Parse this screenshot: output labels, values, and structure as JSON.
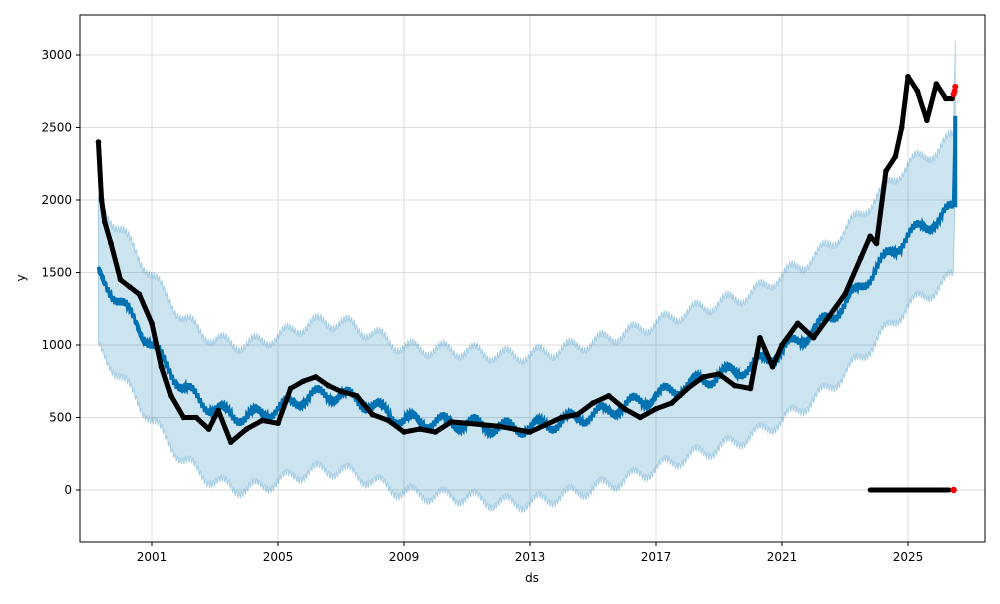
{
  "chart_data": {
    "type": "line",
    "title": "",
    "xlabel": "ds",
    "ylabel": "y",
    "xlim": [
      1998.0,
      2027.1
    ],
    "ylim": [
      -350,
      3270
    ],
    "grid": true,
    "x_ticks": [
      2001,
      2005,
      2009,
      2013,
      2017,
      2021,
      2025
    ],
    "x_tick_labels": [
      "2001",
      "2005",
      "2009",
      "2013",
      "2017",
      "2021",
      "2025"
    ],
    "y_ticks": [
      0,
      500,
      1000,
      1500,
      2000,
      2500,
      3000
    ],
    "y_tick_labels": [
      "0",
      "500",
      "1000",
      "1500",
      "2000",
      "2500",
      "3000"
    ],
    "colors": {
      "forecast": "#0072B2",
      "band": "#0072B2",
      "actual": "#000000",
      "highlight": "#ff0000",
      "grid": "#dddddd"
    },
    "forecast": {
      "name": "yhat",
      "x": [
        1999.3,
        2000,
        2001,
        2002,
        2003,
        2004,
        2005,
        2006,
        2007,
        2008,
        2009,
        2010,
        2011,
        2012,
        2013,
        2014,
        2015,
        2016,
        2017,
        2018,
        2019,
        2020,
        2021,
        2022,
        2023,
        2024,
        2025,
        2026,
        2026.45
      ],
      "yhat": [
        1480,
        1300,
        1000,
        700,
        550,
        500,
        560,
        650,
        660,
        580,
        480,
        470,
        460,
        430,
        430,
        470,
        520,
        580,
        650,
        720,
        790,
        850,
        960,
        1100,
        1280,
        1530,
        1760,
        1870,
        1950
      ],
      "lower": [
        980,
        780,
        480,
        200,
        50,
        0,
        60,
        130,
        140,
        60,
        -20,
        -40,
        -50,
        -90,
        -90,
        -40,
        10,
        70,
        150,
        230,
        290,
        370,
        480,
        620,
        800,
        1030,
        1270,
        1400,
        1480
      ],
      "upper": [
        1980,
        1800,
        1480,
        1180,
        1030,
        1000,
        1060,
        1150,
        1160,
        1080,
        980,
        970,
        960,
        930,
        930,
        970,
        1020,
        1080,
        1150,
        1230,
        1290,
        1350,
        1480,
        1600,
        1790,
        2020,
        2250,
        2350,
        2450
      ],
      "end_spike": {
        "x": 2026.5,
        "yhat": 2580,
        "lower": 2050,
        "upper": 3100
      }
    },
    "actual": {
      "name": "y",
      "x": [
        1999.3,
        1999.4,
        1999.5,
        1999.7,
        2000.0,
        2000.3,
        2000.6,
        2001.0,
        2001.3,
        2001.6,
        2002.0,
        2002.4,
        2002.8,
        2003.1,
        2003.5,
        2004.0,
        2004.5,
        2005.0,
        2005.4,
        2005.8,
        2006.2,
        2006.6,
        2007.0,
        2007.5,
        2008.0,
        2008.5,
        2009.0,
        2009.5,
        2010.0,
        2010.5,
        2011.0,
        2011.5,
        2012.0,
        2012.5,
        2013.0,
        2013.5,
        2014.0,
        2014.5,
        2015.0,
        2015.5,
        2016.0,
        2016.5,
        2017.0,
        2017.5,
        2018.0,
        2018.5,
        2019.0,
        2019.5,
        2020.0,
        2020.3,
        2020.7,
        2021.0,
        2021.5,
        2022.0,
        2022.5,
        2023.0,
        2023.5,
        2023.8,
        2024.0,
        2024.3,
        2024.6,
        2024.8,
        2025.0,
        2025.3,
        2025.6,
        2025.9,
        2026.2,
        2026.4
      ],
      "y": [
        2400,
        2000,
        1850,
        1700,
        1450,
        1400,
        1350,
        1150,
        850,
        650,
        500,
        500,
        420,
        550,
        330,
        420,
        480,
        460,
        700,
        750,
        780,
        720,
        680,
        650,
        520,
        480,
        400,
        420,
        400,
        470,
        460,
        450,
        440,
        420,
        400,
        450,
        500,
        520,
        600,
        650,
        560,
        500,
        560,
        600,
        700,
        780,
        800,
        720,
        700,
        1050,
        850,
        1000,
        1150,
        1050,
        1200,
        1350,
        1600,
        1750,
        1700,
        2200,
        2300,
        2500,
        2850,
        2750,
        2550,
        2800,
        2700,
        2700
      ]
    },
    "actual_zero": {
      "x_start": 2023.8,
      "x_end": 2026.3,
      "y": 0
    },
    "highlight_points": {
      "x": [
        2026.45,
        2026.5,
        2026.48
      ],
      "y": [
        2730,
        2780,
        2750
      ],
      "zero_x": 2026.45,
      "zero_y": 0
    }
  }
}
